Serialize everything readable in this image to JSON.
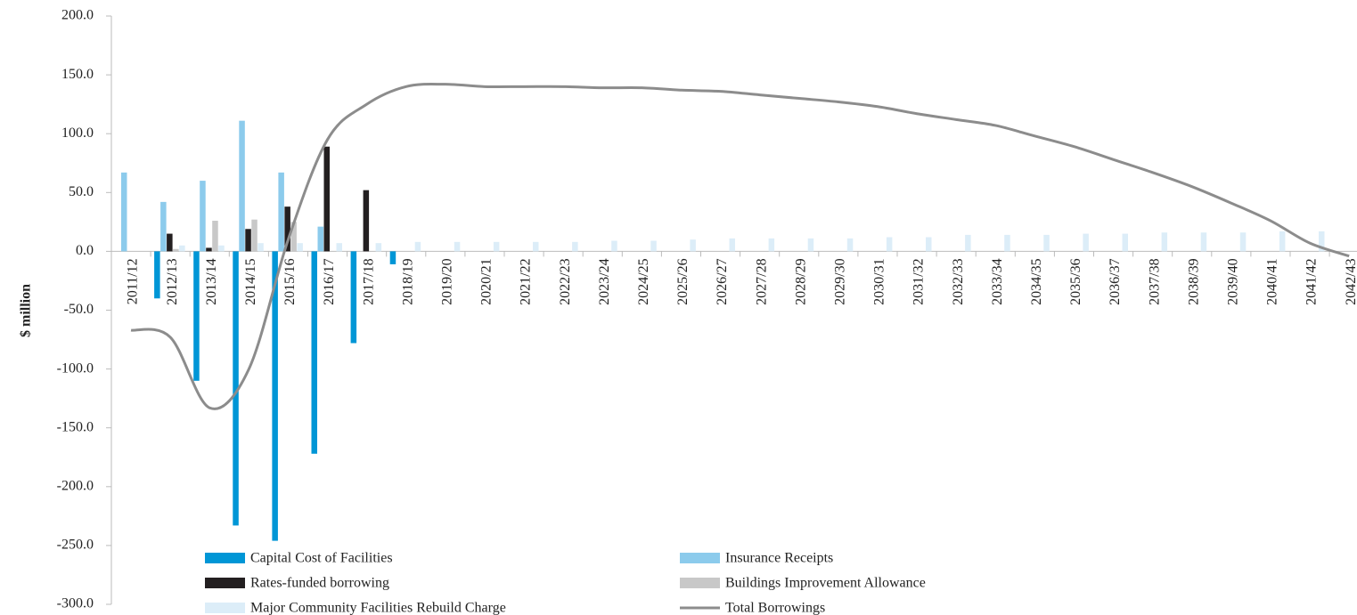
{
  "chart_data": {
    "type": "bar",
    "y_label": "$ million",
    "categories": [
      "2011/12",
      "2012/13",
      "2013/14",
      "2014/15",
      "2015/16",
      "2016/17",
      "2017/18",
      "2018/19",
      "2019/20",
      "2020/21",
      "2021/22",
      "2022/23",
      "2023/24",
      "2024/25",
      "2025/26",
      "2026/27",
      "2027/28",
      "2028/29",
      "2029/30",
      "2030/31",
      "2031/32",
      "2032/33",
      "2033/34",
      "2034/35",
      "2035/36",
      "2036/37",
      "2037/38",
      "2038/39",
      "2039/40",
      "2040/41",
      "2041/42",
      "2042/43"
    ],
    "series": [
      {
        "name": "Capital Cost of Facilities",
        "color": "#0096d6",
        "values": [
          0,
          -40,
          -110,
          -233,
          -246,
          -172,
          -78,
          -11,
          0,
          0,
          0,
          0,
          0,
          0,
          0,
          0,
          0,
          0,
          0,
          0,
          0,
          0,
          0,
          0,
          0,
          0,
          0,
          0,
          0,
          0,
          0,
          0
        ]
      },
      {
        "name": "Insurance Receipts",
        "color": "#8ccbec",
        "values": [
          67,
          42,
          60,
          111,
          67,
          21,
          0,
          0,
          0,
          0,
          0,
          0,
          0,
          0,
          0,
          0,
          0,
          0,
          0,
          0,
          0,
          0,
          0,
          0,
          0,
          0,
          0,
          0,
          0,
          0,
          0,
          0
        ]
      },
      {
        "name": "Rates-funded borrowing",
        "color": "#231f20",
        "values": [
          0,
          15,
          3,
          19,
          38,
          89,
          52,
          0,
          0,
          0,
          0,
          0,
          0,
          0,
          0,
          0,
          0,
          0,
          0,
          0,
          0,
          0,
          0,
          0,
          0,
          0,
          0,
          0,
          0,
          0,
          0,
          0
        ]
      },
      {
        "name": "Buildings Improvement Allowance",
        "color": "#c8c8c8",
        "values": [
          0,
          2,
          26,
          27,
          25,
          0,
          0,
          0,
          0,
          0,
          0,
          0,
          0,
          0,
          0,
          0,
          0,
          0,
          0,
          0,
          0,
          0,
          0,
          0,
          0,
          0,
          0,
          0,
          0,
          0,
          0,
          0
        ]
      },
      {
        "name": "Major Community Facilities Rebuild Charge",
        "color": "#dcedf8",
        "values": [
          0,
          5,
          5,
          7,
          7,
          7,
          7,
          8,
          8,
          8,
          8,
          8,
          9,
          9,
          10,
          11,
          11,
          11,
          11,
          12,
          12,
          14,
          14,
          14,
          15,
          15,
          16,
          16,
          16,
          17,
          17,
          19
        ]
      },
      {
        "name": "Total Borrowings",
        "type": "line",
        "color": "#8c8c8c",
        "values": [
          -67,
          -73,
          -133,
          -100,
          10,
          95,
          125,
          140,
          142,
          140,
          140,
          140,
          139,
          139,
          137,
          136,
          133,
          130,
          127,
          123,
          117,
          112,
          107,
          98,
          89,
          78,
          67,
          55,
          41,
          26,
          7,
          -4
        ]
      }
    ],
    "ylim": [
      -300,
      200
    ],
    "yticks": [
      {
        "value": -300,
        "label": "-300.0"
      },
      {
        "value": -250,
        "label": "-250.0"
      },
      {
        "value": -200,
        "label": "-200.0"
      },
      {
        "value": -150,
        "label": "-150.0"
      },
      {
        "value": -100,
        "label": "-100.0"
      },
      {
        "value": -50,
        "label": "-50.0"
      },
      {
        "value": 0,
        "label": "0.0"
      },
      {
        "value": 50,
        "label": "50.0"
      },
      {
        "value": 100,
        "label": "100.0"
      },
      {
        "value": 150,
        "label": "150.0"
      },
      {
        "value": 200,
        "label": "200.0"
      }
    ]
  }
}
